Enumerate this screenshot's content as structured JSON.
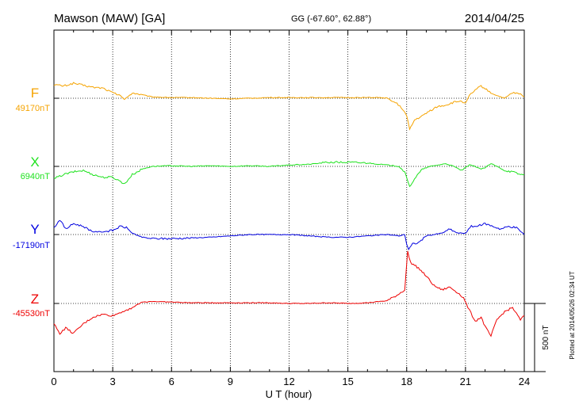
{
  "header": {
    "station": "Mawson (MAW)  [GA]",
    "coords": "GG (-67.60°,  62.88°)",
    "date": "2014/04/25"
  },
  "footer": {
    "plotted": "Plotted at 2014/05/26 02:34 UT"
  },
  "scale_label": "500 nT",
  "chart_data": {
    "type": "line",
    "xlabel": "U T (hour)",
    "xlim": [
      0,
      24
    ],
    "xticks": [
      "0",
      "3",
      "6",
      "9",
      "12",
      "15",
      "18",
      "21",
      "24"
    ],
    "grid": "dotted vertical at each 3 h",
    "scale_bar_nT": 500,
    "series": [
      {
        "name": "F",
        "baseline_label": "49170nT",
        "color": "#f5a300",
        "x": [
          0,
          0.5,
          1,
          1.5,
          2,
          2.5,
          3,
          3.4,
          3.6,
          4,
          4.5,
          5,
          6,
          7,
          8,
          9,
          10,
          11,
          12,
          13,
          14,
          15,
          16,
          16.5,
          17,
          17.5,
          17.8,
          18,
          18.15,
          18.4,
          18.8,
          19.2,
          19.6,
          20,
          20.4,
          20.8,
          21,
          21.2,
          21.5,
          21.8,
          22,
          22.3,
          22.6,
          23,
          23.4,
          23.8,
          24
        ],
        "y": [
          100,
          90,
          110,
          95,
          80,
          75,
          40,
          20,
          -10,
          40,
          25,
          10,
          5,
          5,
          0,
          -5,
          0,
          5,
          5,
          5,
          5,
          5,
          5,
          5,
          0,
          -40,
          -80,
          -130,
          -230,
          -160,
          -130,
          -90,
          -60,
          -50,
          -30,
          -20,
          -40,
          20,
          60,
          90,
          70,
          40,
          20,
          0,
          40,
          30,
          10
        ]
      },
      {
        "name": "X",
        "baseline_label": "6940nT",
        "color": "#1ee21e",
        "x": [
          0,
          0.5,
          1,
          1.5,
          2,
          2.5,
          3,
          3.4,
          3.6,
          4,
          4.5,
          5,
          6,
          7,
          8,
          9,
          10,
          11,
          12,
          13,
          14,
          15,
          16,
          17,
          17.6,
          17.9,
          18,
          18.15,
          18.4,
          18.8,
          19.2,
          19.6,
          20,
          20.4,
          20.8,
          21,
          21.2,
          21.5,
          21.8,
          22,
          22.3,
          22.6,
          23,
          23.4,
          23.8,
          24
        ],
        "y": [
          -90,
          -60,
          -40,
          -30,
          -60,
          -80,
          -80,
          -110,
          -130,
          -60,
          -20,
          0,
          5,
          0,
          5,
          0,
          5,
          0,
          10,
          15,
          30,
          30,
          25,
          10,
          0,
          -40,
          -90,
          -150,
          -90,
          -20,
          0,
          10,
          20,
          0,
          -30,
          -10,
          10,
          0,
          -20,
          -10,
          20,
          0,
          -30,
          -40,
          -60,
          -60
        ]
      },
      {
        "name": "Y",
        "baseline_label": "-17190nT",
        "color": "#0000e0",
        "x": [
          0,
          0.3,
          0.6,
          1,
          1.5,
          2,
          2.5,
          3,
          3.4,
          3.7,
          4,
          4.5,
          5,
          6,
          7,
          8,
          9,
          10,
          11,
          12,
          13,
          14,
          15,
          16,
          17,
          17.6,
          17.9,
          18,
          18.1,
          18.3,
          18.6,
          19,
          19.4,
          19.8,
          20.2,
          20.6,
          21,
          21.3,
          21.6,
          22,
          22.4,
          22.8,
          23.2,
          23.6,
          24
        ],
        "y": [
          50,
          110,
          40,
          80,
          60,
          20,
          20,
          30,
          60,
          50,
          10,
          -20,
          -30,
          -30,
          -25,
          -20,
          -10,
          0,
          0,
          0,
          -10,
          -20,
          -20,
          -10,
          0,
          -10,
          0,
          -70,
          -110,
          -70,
          -60,
          -10,
          0,
          10,
          40,
          10,
          10,
          60,
          60,
          80,
          60,
          40,
          60,
          50,
          0
        ]
      },
      {
        "name": "Z",
        "baseline_label": "-45530nT",
        "color": "#ee0000",
        "x": [
          0,
          0.3,
          0.6,
          1,
          1.5,
          2,
          2.5,
          3,
          3.5,
          4,
          4.5,
          5,
          6,
          7,
          8,
          9,
          10,
          11,
          12,
          13,
          14,
          15,
          16,
          17,
          17.5,
          17.9,
          18.05,
          18.2,
          18.6,
          19,
          19.4,
          19.8,
          20.2,
          20.6,
          20.9,
          21.2,
          21.5,
          21.8,
          22,
          22.3,
          22.6,
          23,
          23.4,
          23.8,
          24
        ],
        "y": [
          -150,
          -220,
          -180,
          -220,
          -150,
          -100,
          -80,
          -90,
          -60,
          -30,
          10,
          15,
          10,
          5,
          5,
          5,
          5,
          5,
          0,
          0,
          5,
          0,
          5,
          20,
          60,
          100,
          380,
          300,
          260,
          200,
          130,
          100,
          120,
          80,
          40,
          -50,
          -130,
          -100,
          -170,
          -240,
          -120,
          -60,
          -30,
          -120,
          -90
        ]
      }
    ]
  }
}
